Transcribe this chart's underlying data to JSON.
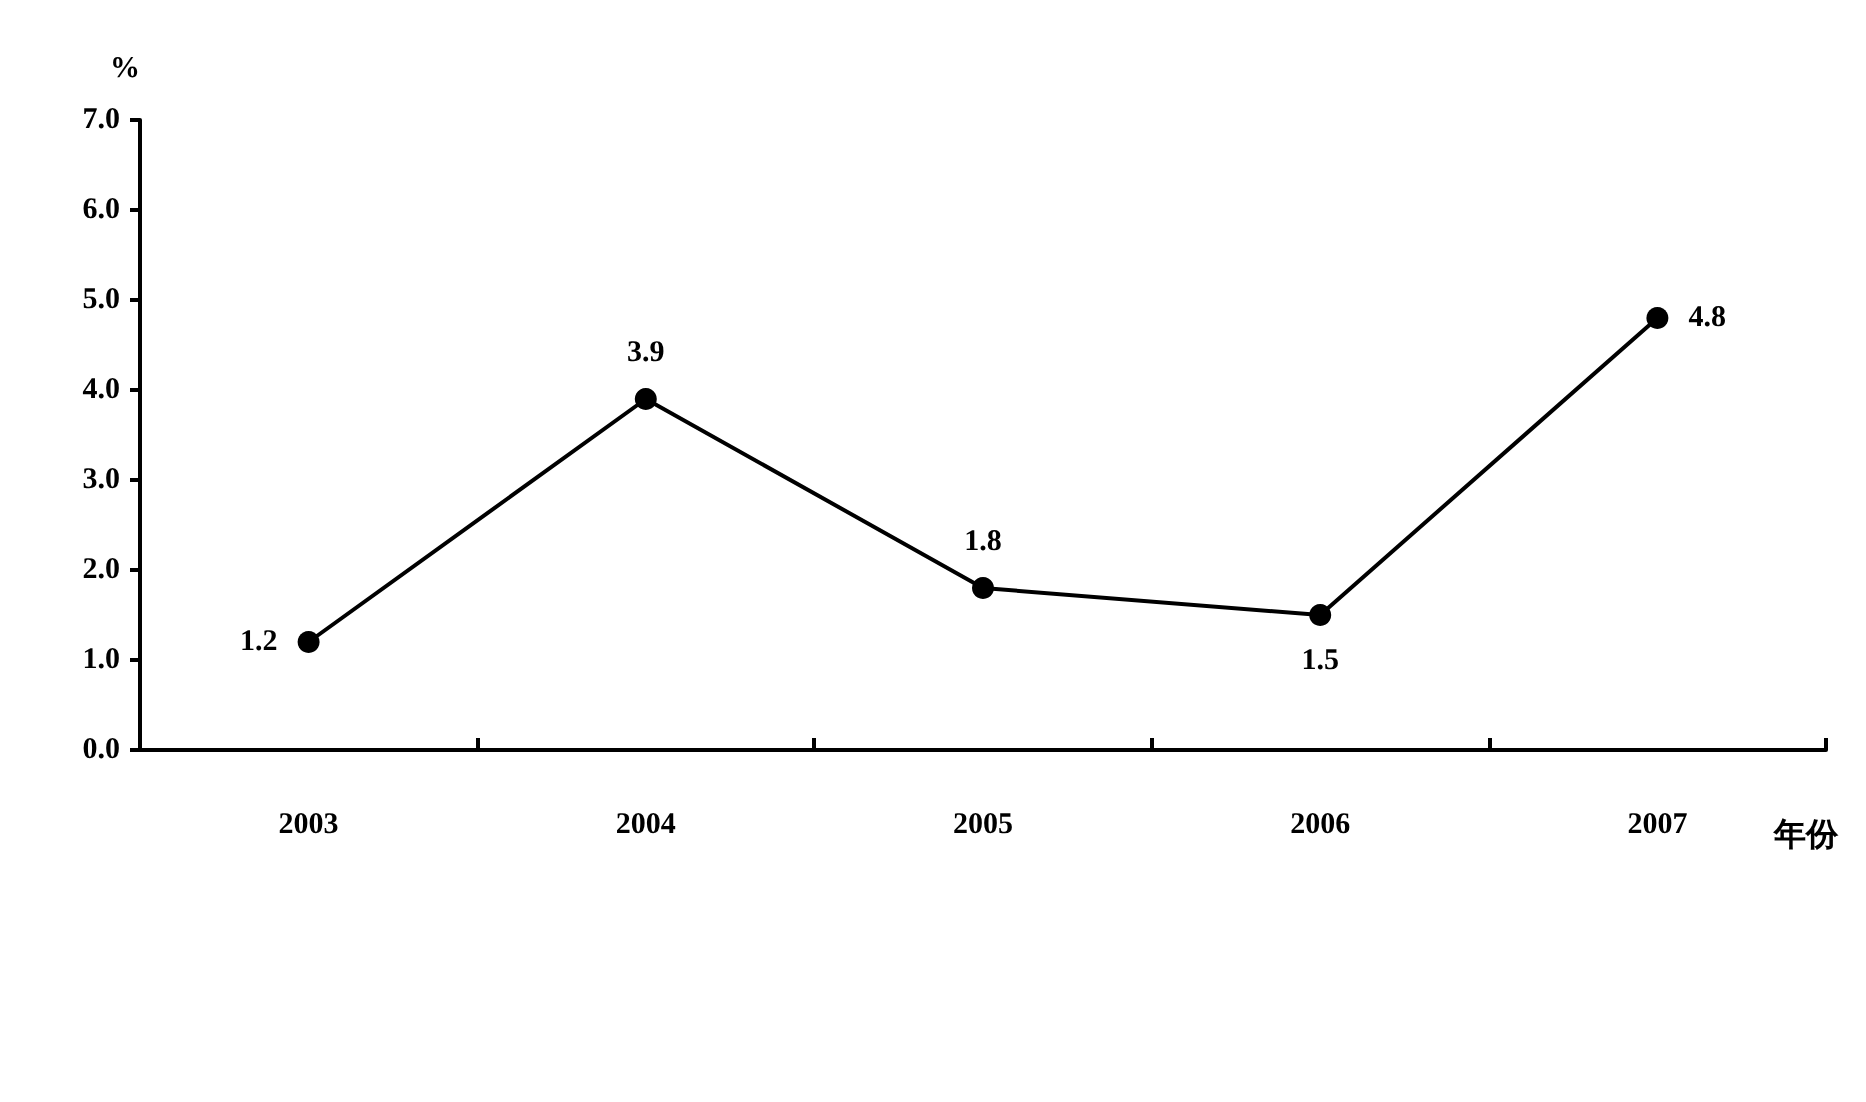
{
  "chart_data": {
    "type": "line",
    "ylabel": "%",
    "xlabel": "年份",
    "categories": [
      "2003",
      "2004",
      "2005",
      "2006",
      "2007"
    ],
    "series": [
      {
        "color": "#000000",
        "values": [
          1.2,
          3.9,
          1.8,
          1.5,
          4.8
        ]
      }
    ],
    "ylim": [
      0,
      7
    ],
    "yticks": [
      {
        "value": 0,
        "label": "0.0"
      },
      {
        "value": 1,
        "label": "1.0"
      },
      {
        "value": 2,
        "label": "2.0"
      },
      {
        "value": 3,
        "label": "3.0"
      },
      {
        "value": 4,
        "label": "4.0"
      },
      {
        "value": 5,
        "label": "5.0"
      },
      {
        "value": 6,
        "label": "6.0"
      },
      {
        "value": 7,
        "label": "7.0"
      }
    ],
    "marker": "circle",
    "line_style": "solid",
    "data_labels": true
  }
}
